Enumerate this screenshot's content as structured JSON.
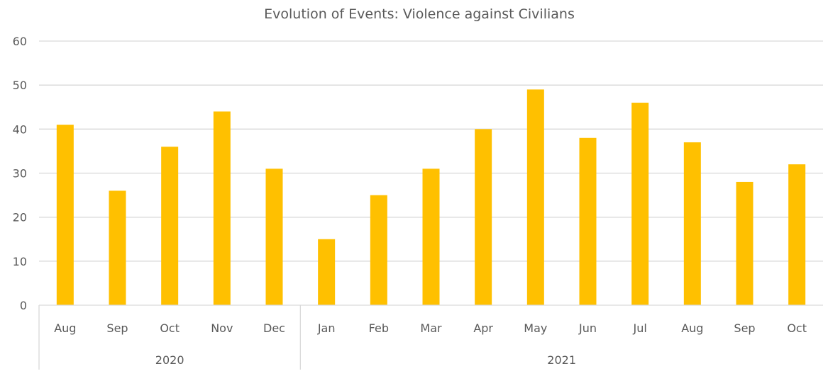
{
  "chart_data": {
    "type": "bar",
    "title": "Evolution of Events: Violence against Civilians",
    "xlabel": "",
    "ylabel": "",
    "ylim": [
      0,
      60
    ],
    "yticks": [
      0,
      10,
      20,
      30,
      40,
      50,
      60
    ],
    "grid": true,
    "legend": "none",
    "bar_color": "#FFC000",
    "categories": [
      "Aug",
      "Sep",
      "Oct",
      "Nov",
      "Dec",
      "Jan",
      "Feb",
      "Mar",
      "Apr",
      "May",
      "Jun",
      "Jul",
      "Aug",
      "Sep",
      "Oct"
    ],
    "values": [
      41,
      26,
      36,
      44,
      31,
      15,
      25,
      31,
      40,
      49,
      38,
      46,
      37,
      28,
      32
    ],
    "groups": [
      {
        "label": "2020",
        "count": 5
      },
      {
        "label": "2021",
        "count": 10
      }
    ]
  }
}
